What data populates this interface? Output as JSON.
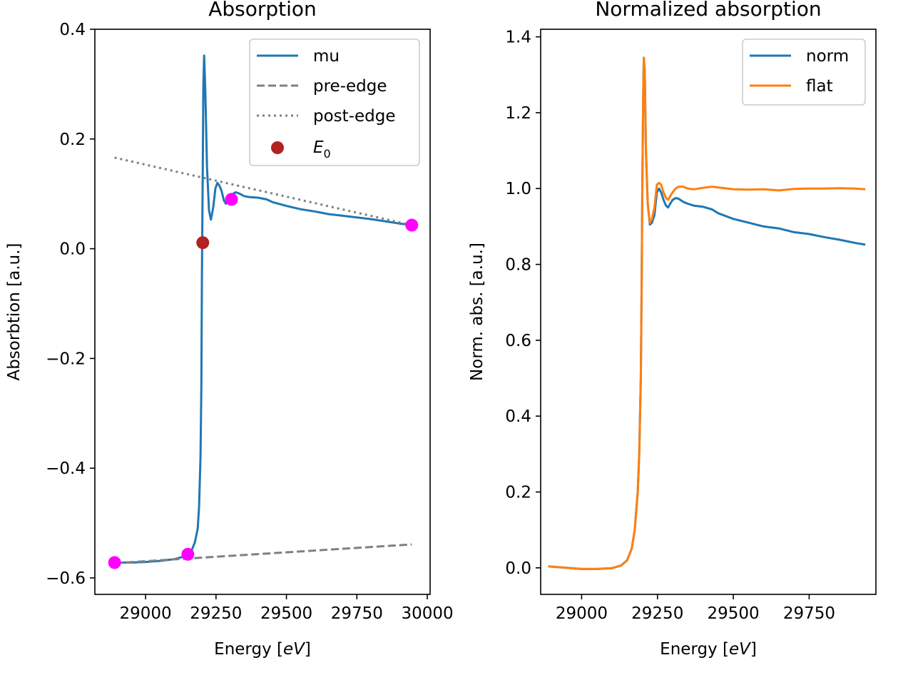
{
  "chart_data": [
    {
      "type": "line",
      "title": "Absorption",
      "xlabel": "Energy [eV]",
      "ylabel": "Absorbtion [a.u.]",
      "xlim": [
        28820,
        30010
      ],
      "ylim": [
        -0.63,
        0.4
      ],
      "xticks": [
        29000,
        29250,
        29500,
        29750,
        30000
      ],
      "xtick_labels": [
        "29000",
        "29250",
        "29500",
        "29750",
        "30000"
      ],
      "yticks": [
        -0.6,
        -0.4,
        -0.2,
        0.0,
        0.2,
        0.4
      ],
      "ytick_labels": [
        "−0.6",
        "−0.4",
        "−0.2",
        "0.0",
        "0.2",
        "0.4"
      ],
      "legend_position": "top-right",
      "grid": false,
      "series": [
        {
          "name": "mu",
          "style": "solid",
          "color": "#1f77b4",
          "x": [
            28890,
            28950,
            29000,
            29050,
            29100,
            29130,
            29150,
            29165,
            29175,
            29185,
            29190,
            29195,
            29198,
            29200,
            29203,
            29205,
            29208,
            29212,
            29218,
            29225,
            29232,
            29240,
            29248,
            29255,
            29262,
            29270,
            29278,
            29285,
            29292,
            29300,
            29310,
            29320,
            29335,
            29350,
            29370,
            29400,
            29430,
            29450,
            29500,
            29550,
            29600,
            29650,
            29700,
            29750,
            29800,
            29850,
            29900,
            29945
          ],
          "y": [
            -0.572,
            -0.572,
            -0.571,
            -0.569,
            -0.566,
            -0.562,
            -0.557,
            -0.548,
            -0.535,
            -0.51,
            -0.47,
            -0.38,
            -0.25,
            -0.05,
            0.15,
            0.3,
            0.352,
            0.29,
            0.15,
            0.07,
            0.053,
            0.075,
            0.11,
            0.12,
            0.115,
            0.105,
            0.088,
            0.082,
            0.085,
            0.095,
            0.1,
            0.103,
            0.1,
            0.096,
            0.094,
            0.093,
            0.09,
            0.085,
            0.078,
            0.072,
            0.068,
            0.063,
            0.06,
            0.057,
            0.054,
            0.05,
            0.046,
            0.043
          ]
        },
        {
          "name": "pre-edge",
          "style": "dashed",
          "color": "#808080",
          "x": [
            28890,
            29945
          ],
          "y": [
            -0.573,
            -0.539
          ]
        },
        {
          "name": "post-edge",
          "style": "dotted",
          "color": "#808080",
          "x": [
            28890,
            29945
          ],
          "y": [
            0.166,
            0.043
          ]
        },
        {
          "name": "E0",
          "style": "marker",
          "color": "#b22222",
          "x": [
            29203
          ],
          "y": [
            0.011
          ]
        },
        {
          "name": "",
          "style": "marker",
          "color": "#ff00ff",
          "x": [
            28890,
            29150,
            29305,
            29945
          ],
          "y": [
            -0.572,
            -0.557,
            0.09,
            0.043
          ]
        }
      ]
    },
    {
      "type": "line",
      "title": "Normalized absorption",
      "xlabel": "Energy [eV]",
      "ylabel": "Norm. abs. [a.u.]",
      "xlim": [
        28865,
        29970
      ],
      "ylim": [
        -0.07,
        1.42
      ],
      "xticks": [
        29000,
        29250,
        29500,
        29750
      ],
      "xtick_labels": [
        "29000",
        "29250",
        "29500",
        "29750"
      ],
      "yticks": [
        0.0,
        0.2,
        0.4,
        0.6,
        0.8,
        1.0,
        1.2,
        1.4
      ],
      "ytick_labels": [
        "0.0",
        "0.2",
        "0.4",
        "0.6",
        "0.8",
        "1.0",
        "1.2",
        "1.4"
      ],
      "legend_position": "top-right",
      "grid": false,
      "series": [
        {
          "name": "norm",
          "style": "solid",
          "color": "#1f77b4",
          "x": [
            28890,
            28950,
            29000,
            29050,
            29100,
            29130,
            29150,
            29165,
            29175,
            29185,
            29190,
            29195,
            29198,
            29200,
            29203,
            29205,
            29208,
            29212,
            29218,
            29225,
            29232,
            29240,
            29248,
            29255,
            29262,
            29270,
            29278,
            29285,
            29292,
            29300,
            29310,
            29320,
            29335,
            29350,
            29370,
            29400,
            29430,
            29450,
            29500,
            29550,
            29600,
            29650,
            29700,
            29750,
            29800,
            29850,
            29900,
            29935
          ],
          "y": [
            0.004,
            0.0,
            -0.003,
            -0.003,
            -0.001,
            0.006,
            0.02,
            0.05,
            0.1,
            0.2,
            0.3,
            0.5,
            0.75,
            1.0,
            1.25,
            1.345,
            1.31,
            1.1,
            0.96,
            0.905,
            0.91,
            0.93,
            0.99,
            1.0,
            0.99,
            0.97,
            0.955,
            0.95,
            0.96,
            0.97,
            0.975,
            0.973,
            0.965,
            0.96,
            0.955,
            0.952,
            0.945,
            0.935,
            0.92,
            0.91,
            0.9,
            0.895,
            0.885,
            0.88,
            0.872,
            0.865,
            0.857,
            0.852
          ]
        },
        {
          "name": "flat",
          "style": "solid",
          "color": "#ff7f0e",
          "x": [
            28890,
            28950,
            29000,
            29050,
            29100,
            29130,
            29150,
            29165,
            29175,
            29185,
            29190,
            29195,
            29198,
            29200,
            29203,
            29205,
            29208,
            29212,
            29218,
            29225,
            29232,
            29240,
            29248,
            29255,
            29262,
            29270,
            29278,
            29285,
            29292,
            29300,
            29310,
            29320,
            29335,
            29350,
            29370,
            29400,
            29430,
            29450,
            29500,
            29550,
            29600,
            29650,
            29700,
            29750,
            29800,
            29850,
            29900,
            29935
          ],
          "y": [
            0.004,
            0.0,
            -0.003,
            -0.003,
            -0.001,
            0.006,
            0.02,
            0.05,
            0.1,
            0.2,
            0.3,
            0.5,
            0.75,
            1.0,
            1.25,
            1.345,
            1.31,
            1.1,
            0.96,
            0.91,
            0.92,
            0.95,
            1.01,
            1.015,
            1.01,
            0.99,
            0.975,
            0.97,
            0.98,
            0.99,
            1.0,
            1.005,
            1.005,
            1.0,
            0.998,
            1.002,
            1.005,
            1.003,
            0.998,
            0.997,
            0.998,
            0.995,
            0.999,
            1.0,
            1.0,
            1.001,
            1.0,
            0.998
          ]
        }
      ]
    }
  ]
}
